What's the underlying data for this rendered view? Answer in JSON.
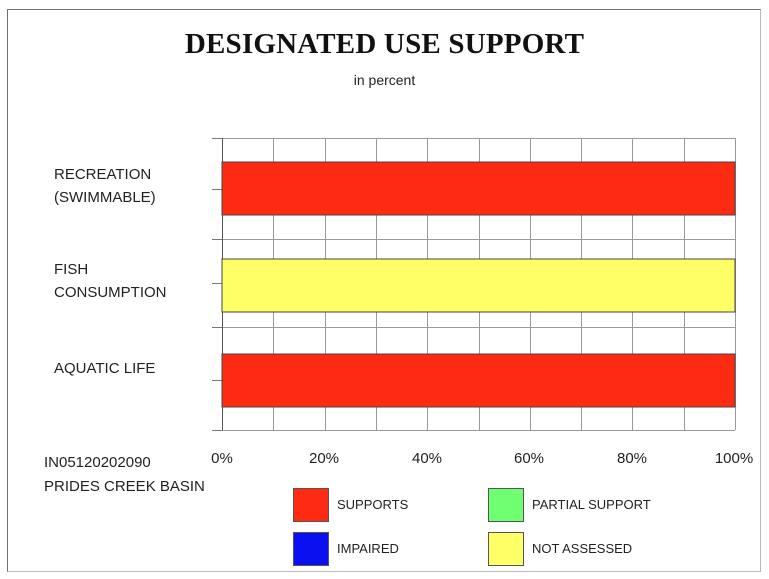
{
  "chart_data": {
    "type": "bar",
    "orientation": "horizontal",
    "title": "DESIGNATED USE SUPPORT",
    "subtitle": "in percent",
    "categories": [
      "RECREATION\n(SWIMMABLE)",
      "FISH\nCONSUMPTION",
      "AQUATIC LIFE"
    ],
    "category_lines": [
      [
        "RECREATION",
        "(SWIMMABLE)"
      ],
      [
        "FISH",
        "CONSUMPTION"
      ],
      [
        "AQUATIC LIFE"
      ]
    ],
    "series": [
      {
        "name": "SUPPORTS",
        "color": "#ff2a12",
        "values": [
          100,
          0,
          100
        ]
      },
      {
        "name": "PARTIAL SUPPORT",
        "color": "#70ff70",
        "values": [
          0,
          0,
          0
        ]
      },
      {
        "name": "IMPAIRED",
        "color": "#0a10f0",
        "values": [
          0,
          0,
          0
        ]
      },
      {
        "name": "NOT ASSESSED",
        "color": "#ffff66",
        "values": [
          0,
          100,
          0
        ]
      }
    ],
    "xlim": [
      0,
      100
    ],
    "x_ticks": [
      "0%",
      "20%",
      "40%",
      "60%",
      "80%",
      "100%"
    ],
    "grid": true,
    "legend_position": "bottom"
  },
  "basin": {
    "code": "IN05120202090",
    "name": "PRIDES CREEK BASIN"
  },
  "legend": [
    {
      "label": "SUPPORTS",
      "color": "#ff2a12"
    },
    {
      "label": "PARTIAL SUPPORT",
      "color": "#70ff70"
    },
    {
      "label": "IMPAIRED",
      "color": "#0a10f0"
    },
    {
      "label": "NOT ASSESSED",
      "color": "#ffff66"
    }
  ]
}
